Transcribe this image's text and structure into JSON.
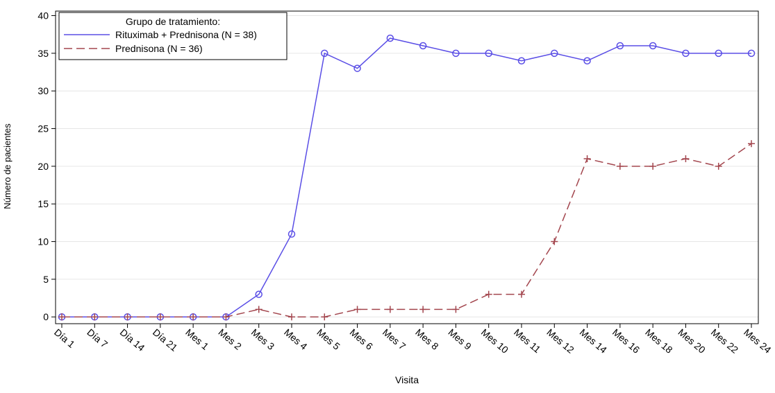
{
  "chart_data": {
    "type": "line",
    "y_label": "Número de pacientes",
    "x_label": "Visita",
    "legend_title": "Grupo de tratamiento:",
    "legend_position": "top-left",
    "grid": true,
    "categories": [
      "Día 1",
      "Día 7",
      "Día 14",
      "Día 21",
      "Mes 1",
      "Mes 2",
      "Mes 3",
      "Mes 4",
      "Mes 5",
      "Mes 6",
      "Mes 7",
      "Mes 8",
      "Mes 9",
      "Mes 10",
      "Mes 11",
      "Mes 12",
      "Mes 14",
      "Mes 16",
      "Mes 18",
      "Mes 20",
      "Mes 22",
      "Mes 24"
    ],
    "series": [
      {
        "name": "Rituximab + Prednisona (N = 38)",
        "color": "#5a4ee6",
        "marker": "circle",
        "dash": false,
        "values": [
          0,
          0,
          0,
          0,
          0,
          0,
          3,
          11,
          35,
          33,
          37,
          36,
          35,
          35,
          34,
          35,
          34,
          36,
          36,
          35,
          35,
          35
        ]
      },
      {
        "name": "Prednisona (N = 36)",
        "color": "#a3464e",
        "marker": "plus",
        "dash": true,
        "values": [
          0,
          0,
          0,
          0,
          0,
          0,
          1,
          0,
          0,
          1,
          1,
          1,
          1,
          3,
          3,
          10,
          21,
          20,
          20,
          21,
          20,
          23
        ]
      }
    ],
    "ylim": [
      -0.9,
      40.6
    ],
    "yticks": [
      0,
      5,
      10,
      15,
      20,
      25,
      30,
      35,
      40
    ]
  }
}
